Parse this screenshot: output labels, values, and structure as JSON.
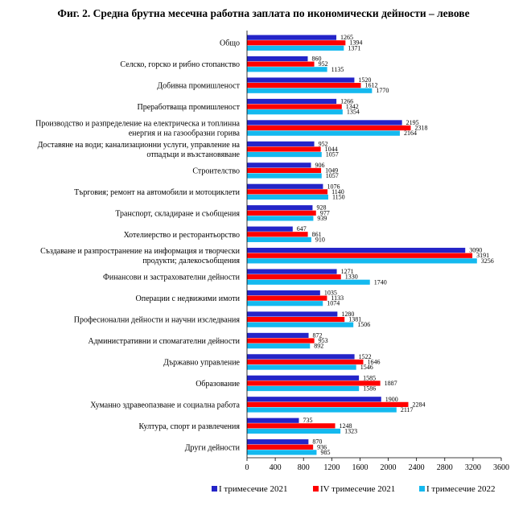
{
  "title": "Фиг. 2. Средна брутна месечна работна заплата по икономически дейности – левове",
  "colors": {
    "s1": "#2424c8",
    "s2": "#ff0000",
    "s3": "#14b9ef"
  },
  "chart_data": {
    "type": "bar",
    "orientation": "horizontal",
    "title": "Фиг. 2. Средна брутна месечна работна заплата по икономически дейности – левове",
    "xlabel": "",
    "ylabel": "",
    "xlim": [
      0,
      3600
    ],
    "ticks": [
      0,
      400,
      800,
      1200,
      1600,
      2000,
      2400,
      2800,
      3200,
      3600
    ],
    "legend_position": "bottom",
    "categories": [
      [
        "Общо"
      ],
      [
        "Селско, горско и рибно стопанство"
      ],
      [
        "Добивна промишленост"
      ],
      [
        "Преработваща промишленост"
      ],
      [
        "Производство и разпределение на електрическа и топлинна",
        "енергия и на газообразни горива"
      ],
      [
        "Доставяне на води; канализационни услуги, управление на",
        "отпадъци и възстановяване"
      ],
      [
        "Строителство"
      ],
      [
        "Търговия; ремонт на автомобили и мотоциклети"
      ],
      [
        "Транспорт, складиране и съобщения"
      ],
      [
        "Хотелиерство и ресторантьорство"
      ],
      [
        "Създаване и разпространение на информация и творчески",
        "продукти; далекосъобщения"
      ],
      [
        "Финансови и застрахователни дейности"
      ],
      [
        "Операции с недвижими имоти"
      ],
      [
        "Професионални дейности и научни изследвания"
      ],
      [
        "Административни и спомагателни дейности"
      ],
      [
        "Държавно управление"
      ],
      [
        "Образование"
      ],
      [
        "Хуманно здравеопазване и социална работа"
      ],
      [
        "Култура, спорт и развлечения"
      ],
      [
        "Други дейности"
      ]
    ],
    "series": [
      {
        "name": "I тримесечие 2021",
        "color": "#2424c8",
        "values": [
          1265,
          860,
          1520,
          1266,
          2195,
          952,
          906,
          1076,
          928,
          647,
          3090,
          1271,
          1035,
          1280,
          872,
          1522,
          1585,
          1900,
          735,
          870
        ]
      },
      {
        "name": "IV тримесечие 2021",
        "color": "#ff0000",
        "values": [
          1394,
          952,
          1612,
          1342,
          2318,
          1044,
          1049,
          1140,
          977,
          861,
          3191,
          1330,
          1133,
          1381,
          953,
          1646,
          1887,
          2284,
          1248,
          936
        ]
      },
      {
        "name": "I тримесечие 2022",
        "color": "#14b9ef",
        "values": [
          1371,
          1135,
          1770,
          1354,
          2164,
          1057,
          1057,
          1150,
          939,
          910,
          3256,
          1740,
          1074,
          1506,
          892,
          1546,
          1586,
          2117,
          1323,
          985
        ]
      }
    ]
  }
}
